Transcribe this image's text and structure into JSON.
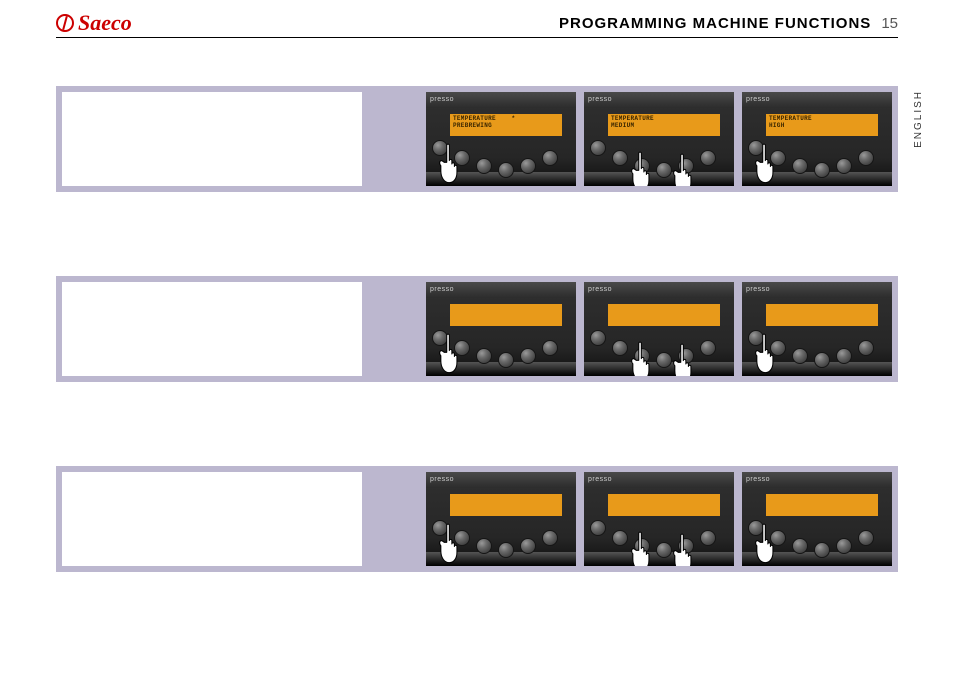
{
  "brand": "Saeco",
  "header": {
    "section_title": "PROGRAMMING MACHINE FUNCTIONS",
    "page_number": "15"
  },
  "language_tab": "ENGLISH",
  "panel_brand_label": "presso",
  "colors": {
    "brand_red": "#cc0000",
    "strip_bg": "#bcb7cf",
    "lcd_bg": "#e89a1a",
    "lcd_text": "#3a2600",
    "panel_dark": "#262626"
  },
  "rows": [
    {
      "panels": [
        {
          "lcd_line1": "TEMPERATURE    *",
          "lcd_line2": "PREBREWING",
          "hands": [
            {
              "x": 8,
              "y": 50
            }
          ]
        },
        {
          "lcd_line1": "TEMPERATURE",
          "lcd_line2": "MEDIUM",
          "hands": [
            {
              "x": 42,
              "y": 58
            },
            {
              "x": 84,
              "y": 60
            }
          ]
        },
        {
          "lcd_line1": "TEMPERATURE",
          "lcd_line2": "HIGH",
          "hands": [
            {
              "x": 8,
              "y": 50
            }
          ]
        }
      ]
    },
    {
      "panels": [
        {
          "lcd_line1": "",
          "lcd_line2": "",
          "hands": [
            {
              "x": 8,
              "y": 50
            }
          ]
        },
        {
          "lcd_line1": "",
          "lcd_line2": "",
          "hands": [
            {
              "x": 42,
              "y": 58
            },
            {
              "x": 84,
              "y": 60
            }
          ]
        },
        {
          "lcd_line1": "",
          "lcd_line2": "",
          "hands": [
            {
              "x": 8,
              "y": 50
            }
          ]
        }
      ]
    },
    {
      "panels": [
        {
          "lcd_line1": "",
          "lcd_line2": "",
          "hands": [
            {
              "x": 8,
              "y": 50
            }
          ]
        },
        {
          "lcd_line1": "",
          "lcd_line2": "",
          "hands": [
            {
              "x": 42,
              "y": 58
            },
            {
              "x": 84,
              "y": 60
            }
          ]
        },
        {
          "lcd_line1": "",
          "lcd_line2": "",
          "hands": [
            {
              "x": 8,
              "y": 50
            }
          ]
        }
      ]
    }
  ]
}
